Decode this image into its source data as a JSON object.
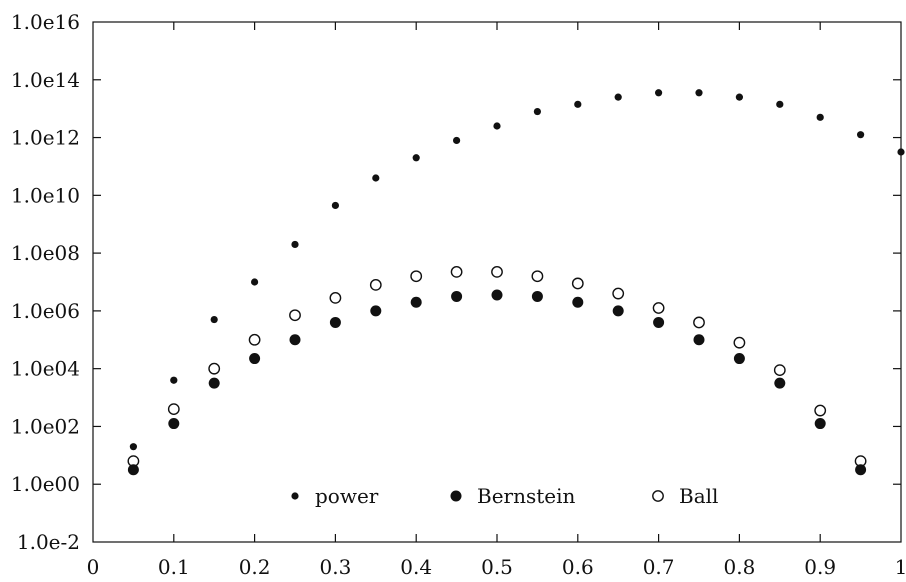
{
  "chart_data": {
    "type": "scatter",
    "x_ticks": [
      "0",
      "0.1",
      "0.2",
      "0.3",
      "0.4",
      "0.5",
      "0.6",
      "0.7",
      "0.8",
      "0.9",
      "1"
    ],
    "y_ticks": [
      "1.0e-2",
      "1.0e00",
      "1.0e02",
      "1.0e04",
      "1.0e06",
      "1.0e08",
      "1.0e10",
      "1.0e12",
      "1.0e14",
      "1.0e16"
    ],
    "xlim": [
      0,
      1
    ],
    "ylim_log10": [
      -2,
      16
    ],
    "y_scale": "log",
    "grid": false,
    "legend_position": "bottom-center",
    "x": [
      0.05,
      0.1,
      0.15,
      0.2,
      0.25,
      0.3,
      0.35,
      0.4,
      0.45,
      0.5,
      0.55,
      0.6,
      0.65,
      0.7,
      0.75,
      0.8,
      0.85,
      0.9,
      0.95,
      1.0
    ],
    "series": [
      {
        "name": "power",
        "marker": "small-filled-circle",
        "y_log10": [
          1.3,
          3.6,
          5.7,
          7.0,
          8.3,
          9.65,
          10.6,
          11.3,
          11.9,
          12.4,
          12.9,
          13.15,
          13.4,
          13.55,
          13.55,
          13.4,
          13.15,
          12.7,
          12.1,
          11.5
        ]
      },
      {
        "name": "Bernstein",
        "marker": "filled-circle",
        "y_log10": [
          0.5,
          2.1,
          3.5,
          4.35,
          5.0,
          5.6,
          6.0,
          6.3,
          6.5,
          6.55,
          6.5,
          6.3,
          6.0,
          5.6,
          5.0,
          4.35,
          3.5,
          2.1,
          0.5,
          null
        ]
      },
      {
        "name": "Ball",
        "marker": "open-circle",
        "y_log10": [
          0.8,
          2.6,
          4.0,
          5.0,
          5.85,
          6.45,
          6.9,
          7.2,
          7.35,
          7.35,
          7.2,
          6.95,
          6.6,
          6.1,
          5.6,
          4.9,
          3.95,
          2.55,
          0.8,
          null
        ]
      }
    ]
  }
}
